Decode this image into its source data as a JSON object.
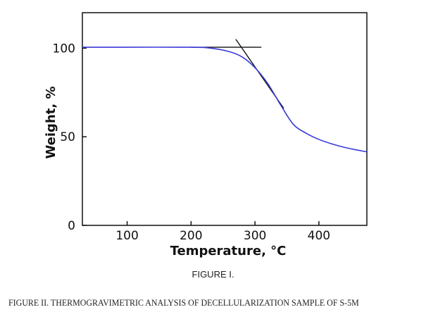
{
  "figure_caption": "FIGURE I.",
  "figure_title": "FIGURE II.  THERMOGRAVIMETRIC ANALYSIS OF DECELLULARIZATION SAMPLE OF S-5M",
  "chart_data": {
    "type": "line",
    "xlabel": "Temperature, °C",
    "ylabel": "Weight, %",
    "xlim": [
      30,
      475
    ],
    "ylim": [
      0,
      120
    ],
    "xticks": [
      100,
      200,
      300,
      400
    ],
    "yticks": [
      0,
      50,
      100
    ],
    "grid": false,
    "series": [
      {
        "color": "#3a3ad8",
        "x": [
          30,
          100,
          200,
          230,
          260,
          280,
          300,
          320,
          340,
          360,
          380,
          400,
          420,
          440,
          460,
          475
        ],
        "y": [
          100.5,
          100.5,
          100.5,
          100,
          98,
          95,
          89,
          80,
          68,
          57,
          52,
          48.5,
          46,
          44,
          42.5,
          41.5
        ]
      }
    ],
    "tangent_lines": [
      {
        "color": "#111111",
        "x": [
          200,
          310
        ],
        "y": [
          100.5,
          100.5
        ]
      },
      {
        "color": "#111111",
        "x": [
          270,
          345
        ],
        "y": [
          105,
          66
        ]
      }
    ]
  }
}
